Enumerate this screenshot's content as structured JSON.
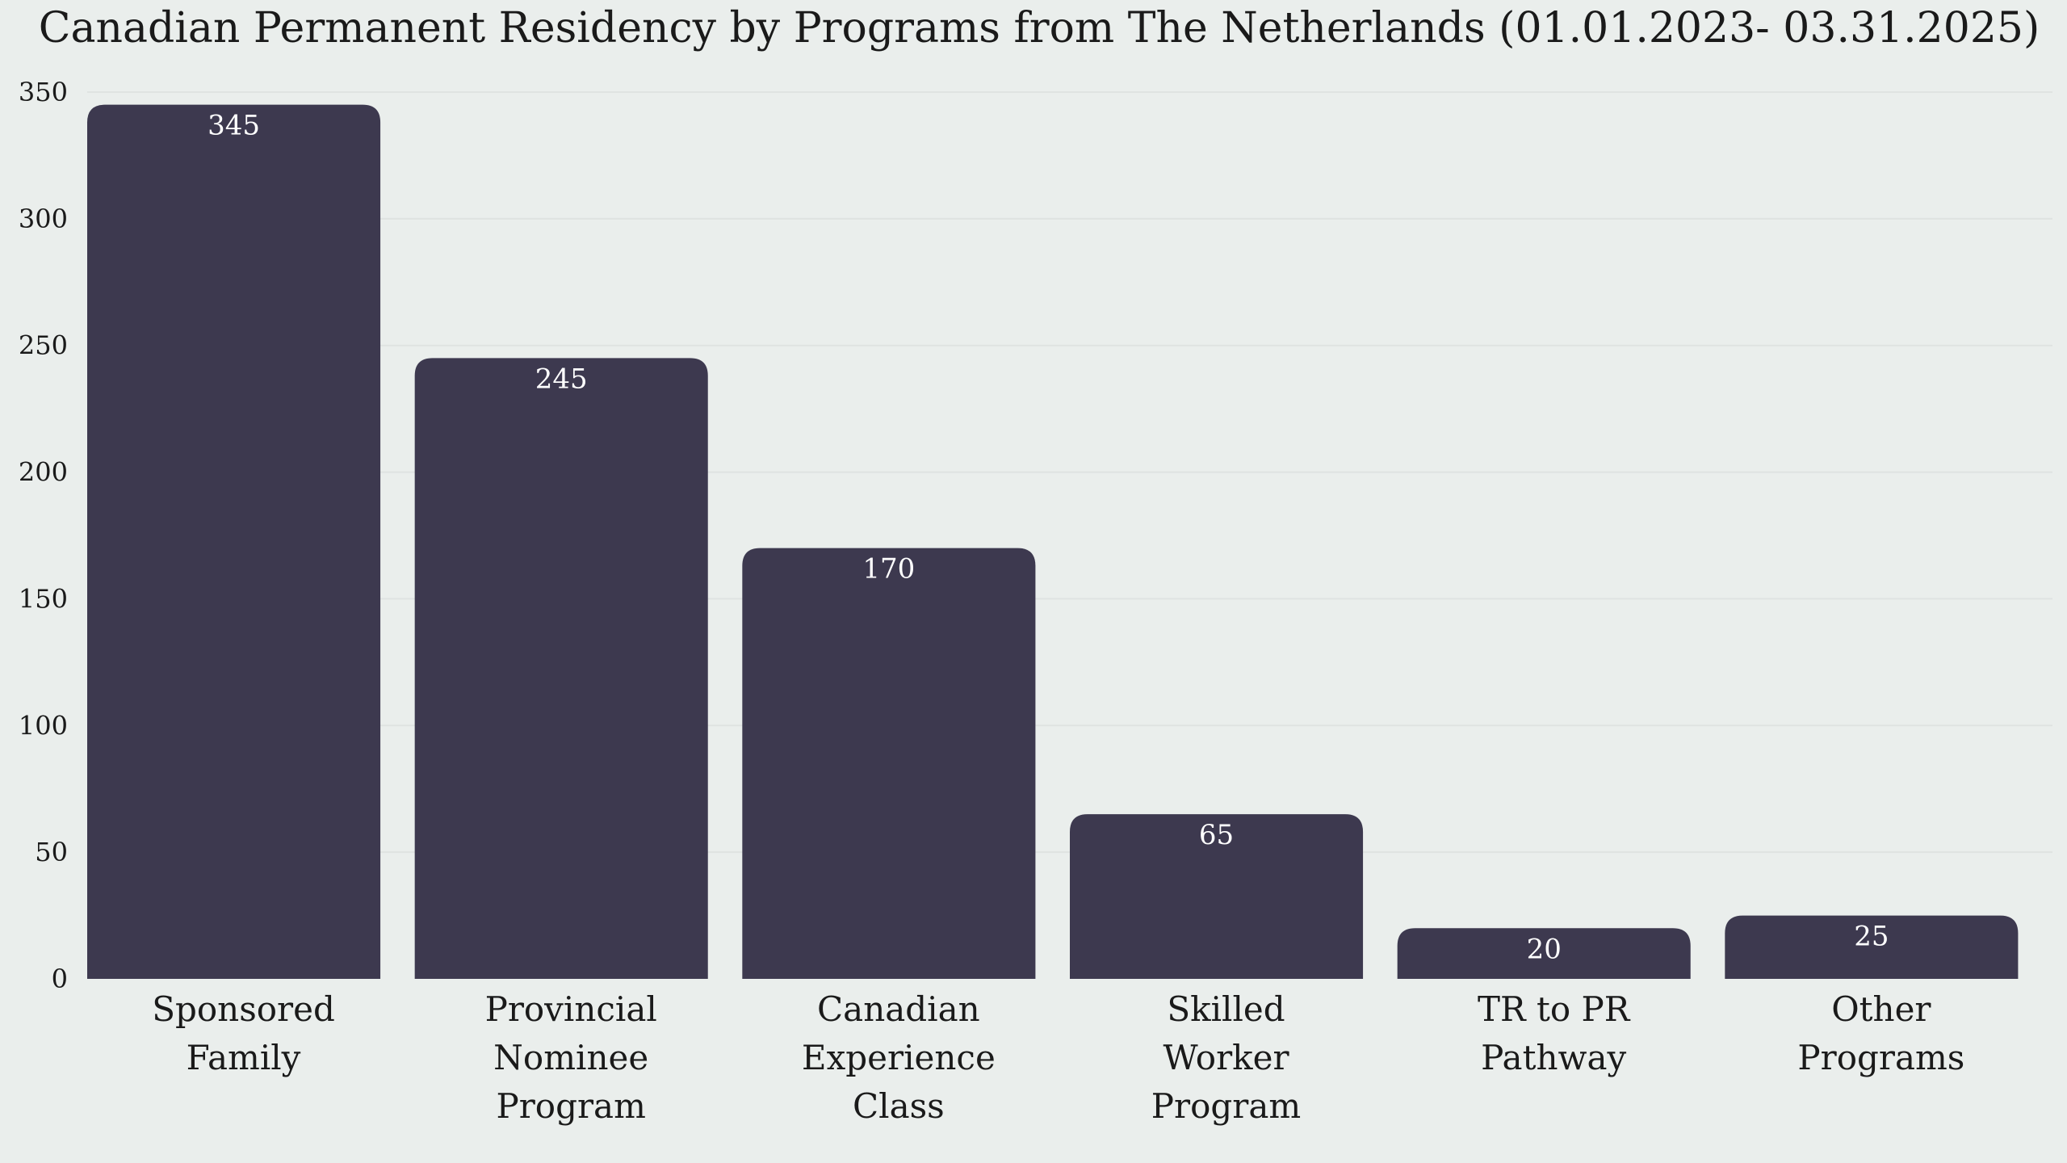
{
  "chart_data": {
    "type": "bar",
    "title": "Canadian Permanent Residency by Programs from The Netherlands (01.01.2023- 03.31.2025)",
    "categories": [
      [
        "Sponsored",
        "Family"
      ],
      [
        "Provincial",
        "Nominee",
        "Program"
      ],
      [
        "Canadian",
        "Experience",
        "Class"
      ],
      [
        "Skilled",
        "Worker",
        "Program"
      ],
      [
        "TR to PR",
        "Pathway"
      ],
      [
        "Other",
        "Programs"
      ]
    ],
    "values": [
      345,
      245,
      170,
      65,
      20,
      25
    ],
    "data_labels": [
      "345",
      "245",
      "170",
      "65",
      "20",
      "25"
    ],
    "yticks": [
      "0",
      "50",
      "100",
      "150",
      "200",
      "250",
      "300",
      "350"
    ],
    "ytick_values": [
      0,
      50,
      100,
      150,
      200,
      250,
      300,
      350
    ],
    "ylim": [
      0,
      350
    ],
    "xlabel": "",
    "ylabel": "",
    "grid": "horizontal",
    "legend": "none",
    "colors": {
      "bar": "#3d394f",
      "background": "#eaeeec",
      "grid": "#dfe3e1",
      "text": "#1a1a1a",
      "data_label": "#ffffff"
    }
  }
}
